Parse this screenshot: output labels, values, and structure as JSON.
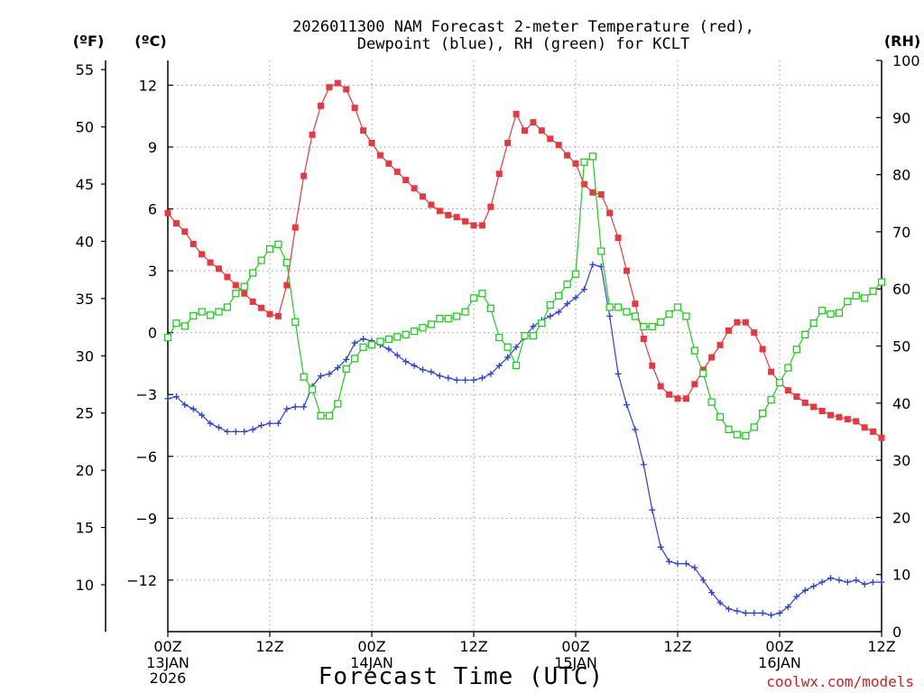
{
  "chart_data": {
    "type": "line",
    "title": [
      "2026011300 NAM Forecast 2-meter Temperature (red),",
      "Dewpoint (blue), RH (green) for KCLT"
    ],
    "xlabel": "Forecast Time (UTC)",
    "credit": "coolwx.com/models",
    "units": {
      "fahrenheit": "(ºF)",
      "celsius": "(ºC)",
      "rh": "(RH)"
    },
    "xlim": [
      0,
      84
    ],
    "x_ticks": [
      {
        "hour": 0,
        "label": "00Z",
        "sub": [
          "13JAN",
          "2026"
        ]
      },
      {
        "hour": 12,
        "label": "12Z",
        "sub": []
      },
      {
        "hour": 24,
        "label": "00Z",
        "sub": [
          "14JAN"
        ]
      },
      {
        "hour": 36,
        "label": "12Z",
        "sub": []
      },
      {
        "hour": 48,
        "label": "00Z",
        "sub": [
          "15JAN"
        ]
      },
      {
        "hour": 60,
        "label": "12Z",
        "sub": []
      },
      {
        "hour": 72,
        "label": "00Z",
        "sub": [
          "16JAN"
        ]
      },
      {
        "hour": 84,
        "label": "12Z",
        "sub": []
      }
    ],
    "celsius_axis": {
      "lim": [
        -14.5,
        13.2
      ],
      "ticks": [
        12,
        9,
        6,
        3,
        0,
        -3,
        -6,
        -9,
        -12
      ],
      "labels": [
        "12",
        "9",
        "6",
        "3",
        "0",
        "−3",
        "−6",
        "−9",
        "−12"
      ]
    },
    "fahrenheit_axis": {
      "lim": [
        5.9,
        55.8
      ],
      "ticks": [
        55,
        50,
        45,
        40,
        35,
        30,
        25,
        20,
        15,
        10
      ],
      "labels": [
        "55",
        "50",
        "45",
        "40",
        "35",
        "30",
        "25",
        "20",
        "15",
        "10"
      ]
    },
    "rh_axis": {
      "lim": [
        0,
        100
      ],
      "ticks": [
        100,
        90,
        80,
        70,
        60,
        50,
        40,
        30,
        20,
        10,
        0
      ],
      "labels": [
        "100",
        "90",
        "80",
        "70",
        "60",
        "50",
        "40",
        "30",
        "20",
        "10",
        "0"
      ]
    },
    "series": [
      {
        "name": "Temperature",
        "color": "#e8383f",
        "axis": "celsius",
        "marker": "filled-square",
        "x": [
          0,
          1,
          2,
          3,
          4,
          5,
          6,
          7,
          8,
          9,
          10,
          11,
          12,
          13,
          14,
          15,
          16,
          17,
          18,
          19,
          20,
          21,
          22,
          23,
          24,
          25,
          26,
          27,
          28,
          29,
          30,
          31,
          32,
          33,
          34,
          35,
          36,
          37,
          38,
          39,
          40,
          41,
          42,
          43,
          44,
          45,
          46,
          47,
          48,
          49,
          50,
          51,
          52,
          53,
          54,
          55,
          56,
          57,
          58,
          59,
          60,
          61,
          62,
          63,
          64,
          65,
          66,
          67,
          68,
          69,
          70,
          71,
          72,
          73,
          74,
          75,
          76,
          77,
          78,
          79,
          80,
          81,
          82,
          83,
          84
        ],
        "values": [
          5.8,
          5.3,
          4.9,
          4.3,
          3.8,
          3.4,
          3.1,
          2.7,
          2.3,
          1.9,
          1.5,
          1.2,
          0.9,
          0.8,
          2.3,
          5.1,
          7.6,
          9.6,
          11.0,
          11.9,
          12.1,
          11.8,
          10.9,
          9.8,
          9.2,
          8.6,
          8.2,
          7.8,
          7.4,
          7.0,
          6.6,
          6.2,
          5.9,
          5.7,
          5.6,
          5.4,
          5.2,
          5.2,
          6.1,
          7.7,
          9.2,
          10.6,
          9.8,
          10.2,
          9.8,
          9.4,
          9.1,
          8.6,
          8.2,
          7.2,
          6.8,
          6.7,
          5.8,
          4.6,
          3.0,
          1.4,
          -0.3,
          -1.6,
          -2.6,
          -3.0,
          -3.2,
          -3.2,
          -2.5,
          -1.8,
          -1.2,
          -0.6,
          0.1,
          0.5,
          0.5,
          0.0,
          -0.8,
          -1.9,
          -2.4,
          -2.8,
          -3.1,
          -3.4,
          -3.6,
          -3.8,
          -4.0,
          -4.1,
          -4.2,
          -4.3,
          -4.6,
          -4.8,
          -5.1
        ]
      },
      {
        "name": "Dewpoint",
        "color": "#2b3fe0",
        "axis": "celsius",
        "marker": "plus",
        "x": [
          0,
          1,
          2,
          3,
          4,
          5,
          6,
          7,
          8,
          9,
          10,
          11,
          12,
          13,
          14,
          15,
          16,
          17,
          18,
          19,
          20,
          21,
          22,
          23,
          24,
          25,
          26,
          27,
          28,
          29,
          30,
          31,
          32,
          33,
          34,
          35,
          36,
          37,
          38,
          39,
          40,
          41,
          42,
          43,
          44,
          45,
          46,
          47,
          48,
          49,
          50,
          51,
          52,
          53,
          54,
          55,
          56,
          57,
          58,
          59,
          60,
          61,
          62,
          63,
          64,
          65,
          66,
          67,
          68,
          69,
          70,
          71,
          72,
          73,
          74,
          75,
          76,
          77,
          78,
          79,
          80,
          81,
          82,
          83,
          84
        ],
        "values": [
          -3.2,
          -3.1,
          -3.5,
          -3.7,
          -4.0,
          -4.4,
          -4.6,
          -4.8,
          -4.8,
          -4.8,
          -4.7,
          -4.5,
          -4.4,
          -4.4,
          -3.7,
          -3.6,
          -3.6,
          -2.6,
          -2.1,
          -2.0,
          -1.7,
          -1.3,
          -0.5,
          -0.3,
          -0.4,
          -0.6,
          -0.8,
          -1.1,
          -1.4,
          -1.6,
          -1.8,
          -1.9,
          -2.1,
          -2.2,
          -2.3,
          -2.3,
          -2.3,
          -2.2,
          -2.0,
          -1.6,
          -1.2,
          -0.7,
          -0.2,
          0.3,
          0.6,
          0.8,
          1.0,
          1.4,
          1.7,
          2.1,
          3.3,
          3.2,
          0.8,
          -2.0,
          -3.5,
          -4.7,
          -6.4,
          -8.6,
          -10.4,
          -11.1,
          -11.2,
          -11.2,
          -11.4,
          -12.0,
          -12.6,
          -13.1,
          -13.4,
          -13.5,
          -13.6,
          -13.6,
          -13.6,
          -13.7,
          -13.6,
          -13.3,
          -12.8,
          -12.5,
          -12.3,
          -12.1,
          -11.9,
          -12.0,
          -12.1,
          -12.0,
          -12.2,
          -12.1,
          -12.1
        ]
      },
      {
        "name": "RH",
        "color": "#22cc22",
        "axis": "rh",
        "marker": "open-square",
        "x": [
          0,
          1,
          2,
          3,
          4,
          5,
          6,
          7,
          8,
          9,
          10,
          11,
          12,
          13,
          14,
          15,
          16,
          17,
          18,
          19,
          20,
          21,
          22,
          23,
          24,
          25,
          26,
          27,
          28,
          29,
          30,
          31,
          32,
          33,
          34,
          35,
          36,
          37,
          38,
          39,
          40,
          41,
          42,
          43,
          44,
          45,
          46,
          47,
          48,
          49,
          50,
          51,
          52,
          53,
          54,
          55,
          56,
          57,
          58,
          59,
          60,
          61,
          62,
          63,
          64,
          65,
          66,
          67,
          68,
          69,
          70,
          71,
          72,
          73,
          74,
          75,
          76,
          77,
          78,
          79,
          80,
          81,
          82,
          83,
          84
        ],
        "values": [
          51.5,
          54.0,
          53.5,
          55.3,
          56.0,
          55.4,
          56.0,
          56.8,
          59.2,
          60.4,
          62.8,
          65.0,
          67.0,
          67.8,
          64.6,
          54.2,
          44.6,
          42.4,
          37.8,
          37.8,
          39.9,
          46.0,
          47.8,
          49.8,
          50.2,
          50.8,
          51.2,
          51.6,
          52.0,
          52.6,
          53.2,
          53.8,
          54.8,
          54.8,
          55.2,
          56.0,
          58.4,
          59.2,
          56.6,
          51.5,
          49.8,
          46.6,
          51.8,
          51.8,
          54.0,
          57.2,
          58.8,
          60.8,
          62.6,
          82.2,
          83.2,
          66.6,
          56.8,
          56.8,
          56.0,
          55.2,
          53.4,
          53.4,
          54.2,
          55.6,
          56.8,
          55.2,
          49.2,
          45.2,
          40.2,
          37.6,
          35.4,
          34.5,
          34.3,
          35.8,
          38.2,
          40.6,
          43.6,
          46.2,
          49.4,
          52.0,
          54.0,
          56.2,
          55.6,
          55.8,
          57.8,
          58.8,
          58.4,
          59.6,
          61.2
        ]
      }
    ]
  }
}
